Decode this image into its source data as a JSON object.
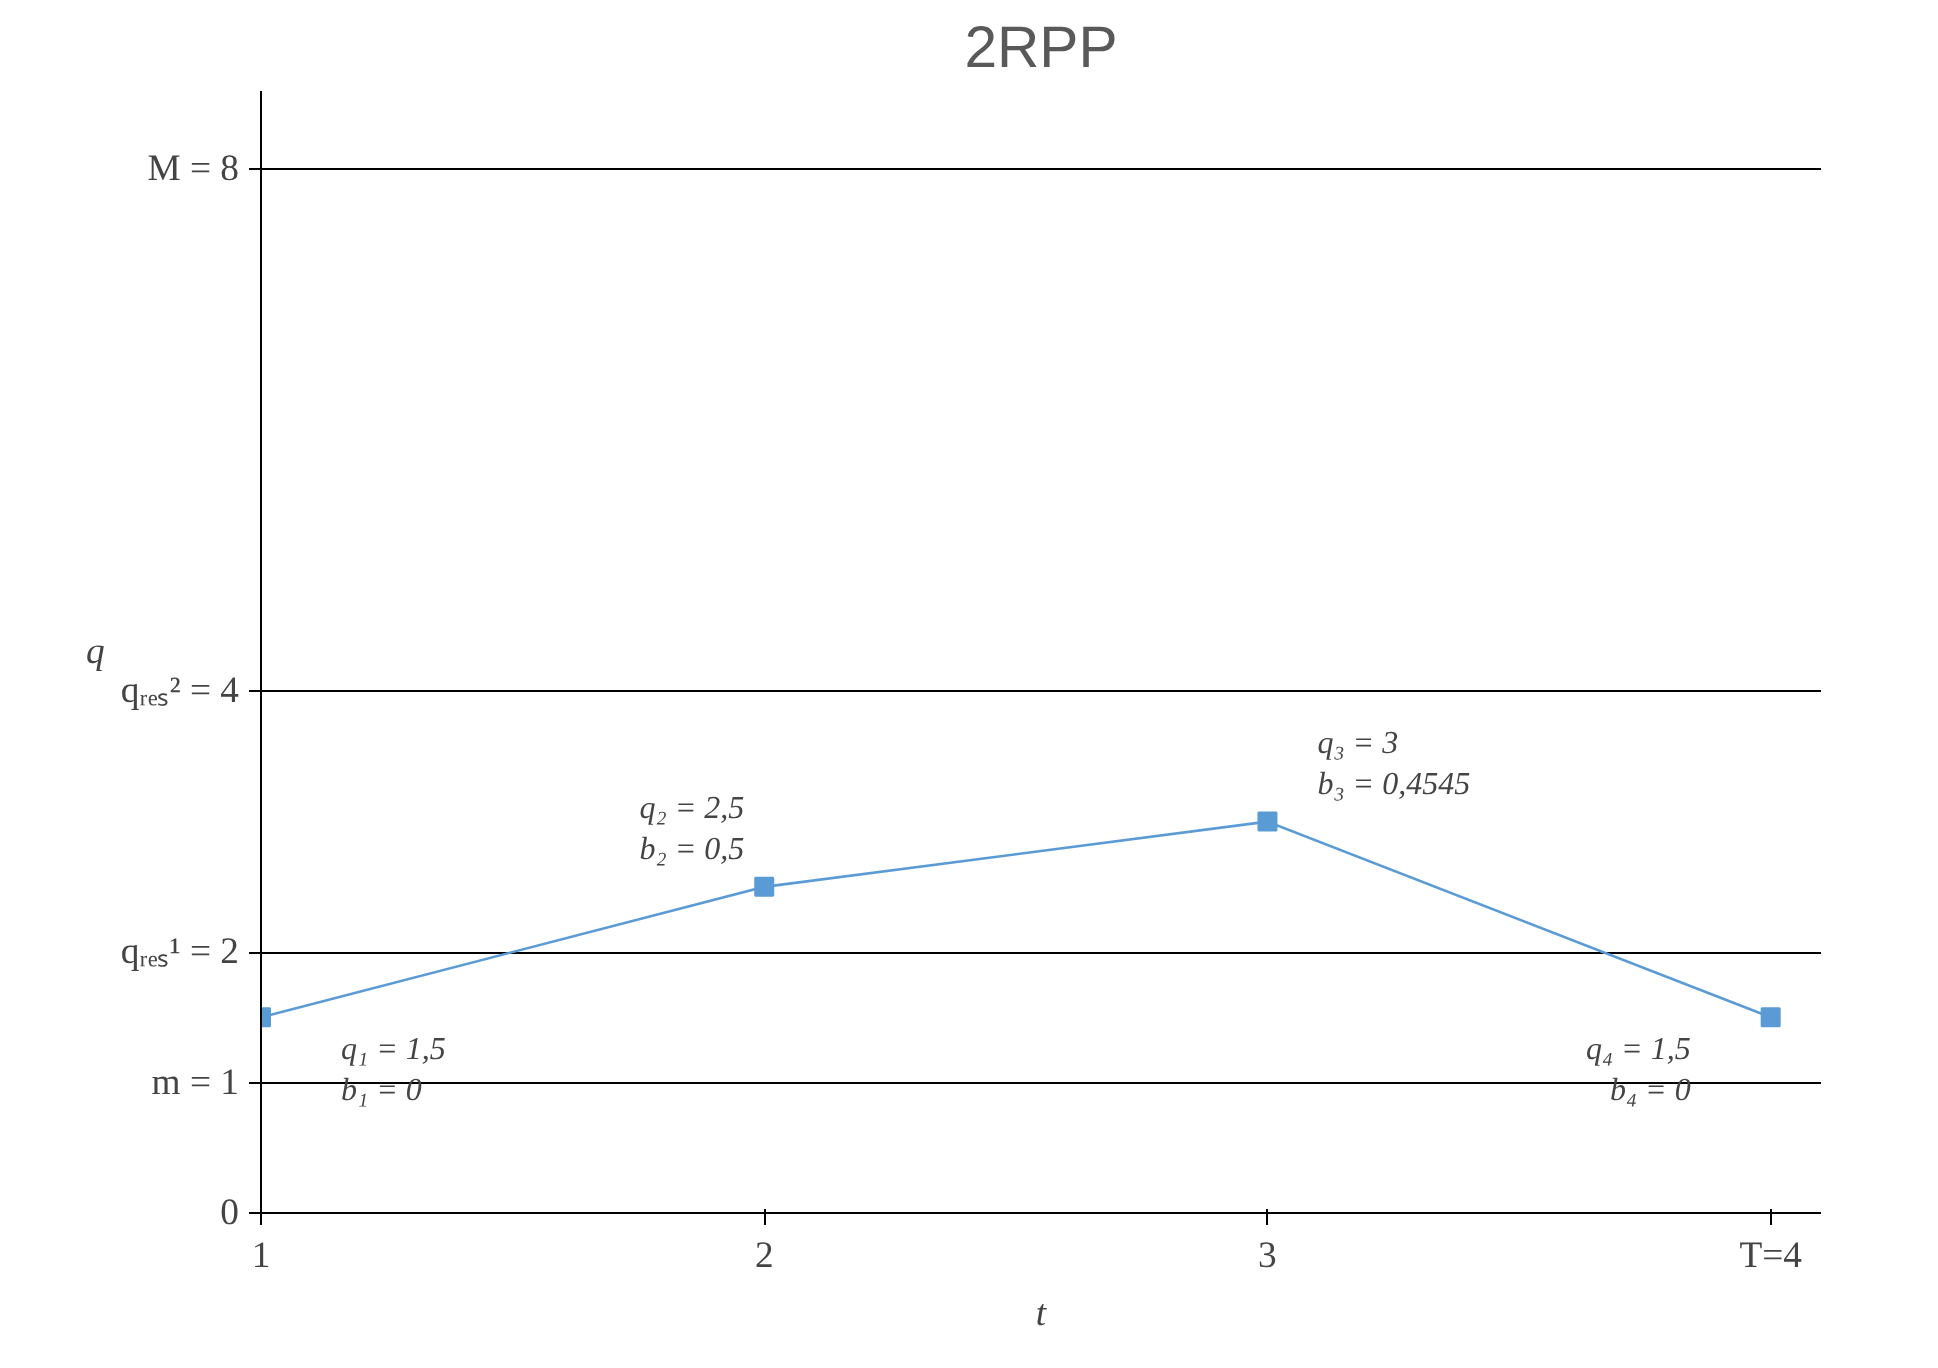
{
  "chart_data": {
    "type": "line",
    "title": "2RPP",
    "xlabel": "t",
    "ylabel": "q",
    "x": [
      1,
      2,
      3,
      4
    ],
    "series": [
      {
        "color": "#5b9bd5",
        "values": [
          1.5,
          2.5,
          3,
          1.5
        ]
      }
    ],
    "xlim": [
      1,
      4.1
    ],
    "ylim": [
      0,
      8.6
    ],
    "xticks": [
      1,
      2,
      3,
      {
        "value": 4,
        "label": "T=4"
      }
    ],
    "yticks": [
      0,
      {
        "value": 1,
        "label": "m = 1"
      },
      {
        "value": 2,
        "label": "qᵣₑₛ¹ = 2"
      },
      {
        "value": 4,
        "label": "qᵣₑₛ² = 4"
      },
      {
        "value": 8,
        "label": "M = 8"
      }
    ],
    "grid": "y",
    "marker": "square",
    "line_style": "solid",
    "annotations": [
      {
        "text": "q₁ = 1,5\nb₁ = 0",
        "x": 1,
        "y": 1.5
      },
      {
        "text": "q₂ = 2,5\nb₂ = 0,5",
        "x": 2,
        "y": 2.5
      },
      {
        "text": "q₃ = 3\nb₃ = 0,4545",
        "x": 3,
        "y": 3
      },
      {
        "text": "q₄ = 1,5\nb₄ = 0",
        "x": 4,
        "y": 1.5
      }
    ]
  }
}
